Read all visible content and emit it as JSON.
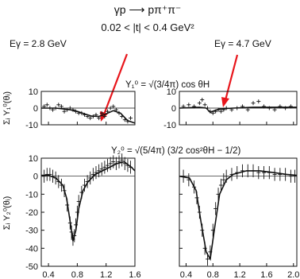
{
  "header": {
    "reaction": "γp ⟶ pπ⁺π⁻",
    "t_range": "0.02 < |t| < 0.4 GeV²",
    "energy_left": "Eγ = 2.8 GeV",
    "energy_right": "Eγ = 4.7 GeV",
    "formula_y10": "Y₁⁰ = √(3/4π) cos θH",
    "formula_y20": "Y₂⁰ = √(5/4π) (3/2 cos²θH − 1/2)",
    "ylabel_top": "Σᵢ Y₁⁰(θᵢ)",
    "ylabel_bottom": "Σᵢ Y₂⁰(θᵢ)"
  },
  "colors": {
    "arrow": "#e8151b",
    "ink": "#111111"
  },
  "chart_data": [
    {
      "type": "scatter",
      "panel": "Y10, Eγ = 2.8 GeV",
      "xlim": [
        0.3,
        1.6
      ],
      "ylim": [
        -10,
        10
      ],
      "yticks": [
        10,
        0,
        -10
      ],
      "x": [
        0.34,
        0.38,
        0.42,
        0.46,
        0.5,
        0.54,
        0.58,
        0.62,
        0.66,
        0.7,
        0.74,
        0.78,
        0.82,
        0.86,
        0.9,
        0.94,
        0.98,
        1.02,
        1.06,
        1.1,
        1.14,
        1.18,
        1.22,
        1.26,
        1.3,
        1.34,
        1.38,
        1.42,
        1.46,
        1.5,
        1.54
      ],
      "y": [
        1,
        2,
        0,
        -1,
        0,
        2,
        1,
        -2,
        -1,
        0,
        -1,
        -2,
        -3,
        -3,
        -4,
        -5,
        -6,
        -5,
        -4,
        -6,
        -3,
        -5,
        -2,
        0,
        1,
        -1,
        -3,
        -5,
        -7,
        -8,
        -6
      ],
      "fit": [
        [
          0.3,
          0
        ],
        [
          0.5,
          0
        ],
        [
          0.7,
          -1
        ],
        [
          0.8,
          -2
        ],
        [
          0.9,
          -3.5
        ],
        [
          1.0,
          -4.8
        ],
        [
          1.1,
          -5
        ],
        [
          1.2,
          -3.5
        ],
        [
          1.3,
          -1.5
        ],
        [
          1.4,
          -3
        ],
        [
          1.5,
          -7.5
        ],
        [
          1.6,
          -9
        ]
      ]
    },
    {
      "type": "scatter",
      "panel": "Y10, Eγ = 4.7 GeV",
      "xlim": [
        0.3,
        2.05
      ],
      "ylim": [
        -10,
        10
      ],
      "yticks": [
        10,
        0,
        -10
      ],
      "x": [
        0.36,
        0.44,
        0.52,
        0.6,
        0.64,
        0.68,
        0.72,
        0.76,
        0.8,
        0.84,
        0.88,
        0.92,
        0.96,
        1.0,
        1.08,
        1.16,
        1.24,
        1.32,
        1.4,
        1.48,
        1.56,
        1.64,
        1.72,
        1.8,
        1.88,
        1.96
      ],
      "y": [
        1,
        2,
        1,
        3,
        5,
        2,
        0,
        -2,
        -3,
        -2,
        -1,
        -2,
        -1,
        0,
        -1,
        0,
        1,
        -1,
        3,
        4,
        1,
        0,
        -1,
        1,
        0,
        1
      ],
      "fit": [
        [
          0.3,
          0
        ],
        [
          0.6,
          0.5
        ],
        [
          0.7,
          0
        ],
        [
          0.76,
          -2.5
        ],
        [
          0.82,
          -1.5
        ],
        [
          0.9,
          -0.5
        ],
        [
          1.1,
          0
        ],
        [
          1.4,
          0.5
        ],
        [
          1.7,
          0.5
        ],
        [
          2.05,
          0.5
        ]
      ]
    },
    {
      "type": "scatter",
      "panel": "Y20, Eγ = 2.8 GeV",
      "xlim": [
        0.3,
        1.6
      ],
      "ylim": [
        -50,
        10
      ],
      "yticks": [
        10,
        0,
        -10,
        -20,
        -30,
        -40,
        -50
      ],
      "xticks": [
        "0.4",
        "0.8",
        "1.2",
        "1.6"
      ],
      "x": [
        0.34,
        0.38,
        0.42,
        0.46,
        0.5,
        0.54,
        0.58,
        0.62,
        0.66,
        0.7,
        0.72,
        0.74,
        0.76,
        0.78,
        0.8,
        0.82,
        0.86,
        0.9,
        0.94,
        0.98,
        1.02,
        1.06,
        1.1,
        1.14,
        1.18,
        1.22,
        1.26,
        1.3,
        1.34,
        1.38,
        1.42,
        1.46,
        1.5,
        1.54
      ],
      "y": [
        0,
        1,
        1,
        0,
        -1,
        -3,
        -5,
        -8,
        -16,
        -26,
        -31,
        -35,
        -33,
        -27,
        -20,
        -14,
        -9,
        -5,
        -3,
        -1,
        1,
        2,
        3,
        4,
        5,
        6,
        7,
        8,
        7,
        8,
        9,
        7,
        6,
        5
      ],
      "fit": [
        [
          0.3,
          0.5
        ],
        [
          0.4,
          0.5
        ],
        [
          0.5,
          -1
        ],
        [
          0.6,
          -5
        ],
        [
          0.65,
          -12
        ],
        [
          0.7,
          -25
        ],
        [
          0.74,
          -36
        ],
        [
          0.78,
          -30
        ],
        [
          0.82,
          -18
        ],
        [
          0.88,
          -8
        ],
        [
          0.95,
          -3
        ],
        [
          1.05,
          1
        ],
        [
          1.2,
          4
        ],
        [
          1.35,
          7
        ],
        [
          1.45,
          8
        ],
        [
          1.55,
          5
        ],
        [
          1.6,
          3
        ]
      ]
    },
    {
      "type": "scatter",
      "panel": "Y20, Eγ = 4.7 GeV",
      "xlim": [
        0.3,
        2.05
      ],
      "ylim": [
        -50,
        10
      ],
      "xticks": [
        "0.4",
        "0.8",
        "1.2",
        "1.6",
        "2.0"
      ],
      "x": [
        0.36,
        0.44,
        0.52,
        0.56,
        0.6,
        0.64,
        0.68,
        0.72,
        0.76,
        0.8,
        0.84,
        0.88,
        0.92,
        0.96,
        1.0,
        1.08,
        1.16,
        1.24,
        1.32,
        1.4,
        1.48,
        1.56,
        1.64,
        1.72,
        1.8,
        1.88,
        1.96,
        2.02
      ],
      "y": [
        0,
        -2,
        -6,
        -12,
        -20,
        -30,
        -40,
        -46,
        -42,
        -30,
        -18,
        -10,
        -5,
        -2,
        0,
        1,
        2,
        3,
        3,
        3,
        2,
        2,
        2,
        1,
        1,
        1,
        0,
        0
      ],
      "fit": [
        [
          0.3,
          0
        ],
        [
          0.45,
          -1
        ],
        [
          0.55,
          -8
        ],
        [
          0.62,
          -25
        ],
        [
          0.7,
          -42
        ],
        [
          0.76,
          -46
        ],
        [
          0.82,
          -30
        ],
        [
          0.9,
          -10
        ],
        [
          1.0,
          -2
        ],
        [
          1.1,
          1
        ],
        [
          1.3,
          3
        ],
        [
          1.5,
          3
        ],
        [
          1.7,
          2
        ],
        [
          1.9,
          1
        ],
        [
          2.05,
          0.5
        ]
      ]
    }
  ]
}
